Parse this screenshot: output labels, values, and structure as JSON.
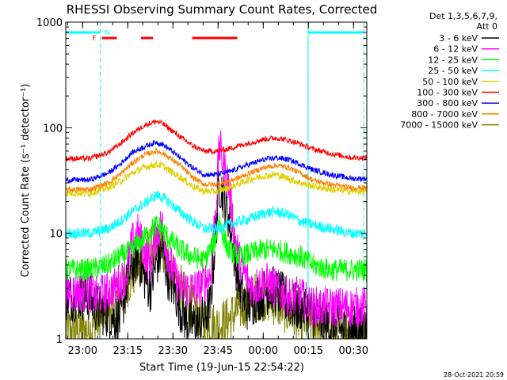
{
  "chart_data": {
    "type": "line",
    "title": "RHESSI Observing Summary Count Rates, Corrected",
    "xlabel": "Start Time (19-Jun-15 22:54:22)",
    "ylabel": "Corrected Count Rate (s⁻¹ detector⁻¹)",
    "y_scale": "log",
    "ylim": [
      1,
      1000
    ],
    "xlim_minutes": [
      0,
      100
    ],
    "x_ticks": [
      {
        "label": "23:00",
        "minute": 5.6
      },
      {
        "label": "23:15",
        "minute": 20.6
      },
      {
        "label": "23:30",
        "minute": 35.6
      },
      {
        "label": "23:45",
        "minute": 50.6
      },
      {
        "label": "00:00",
        "minute": 65.6
      },
      {
        "label": "00:15",
        "minute": 80.6
      },
      {
        "label": "00:30",
        "minute": 95.6
      }
    ],
    "y_ticks": [
      {
        "label": "1",
        "value": 1
      },
      {
        "label": "10",
        "value": 10
      },
      {
        "label": "100",
        "value": 100
      },
      {
        "label": "1000",
        "value": 1000
      }
    ],
    "legend_header": [
      "Det 1,3,5,6,7,9,",
      "Att 0"
    ],
    "legend_position": "top-right",
    "series": [
      {
        "name": "3 - 6 keV",
        "color": "#000000",
        "points": [
          [
            0,
            2.5
          ],
          [
            8,
            2.5
          ],
          [
            10,
            2
          ],
          [
            18,
            1.5
          ],
          [
            20,
            3
          ],
          [
            22,
            5
          ],
          [
            24,
            6
          ],
          [
            26,
            4
          ],
          [
            28,
            3
          ],
          [
            30,
            5
          ],
          [
            32,
            7
          ],
          [
            34,
            4
          ],
          [
            36,
            3
          ],
          [
            38,
            2
          ],
          [
            40,
            1.5
          ],
          [
            44,
            1.3
          ],
          [
            48,
            2
          ],
          [
            50,
            12
          ],
          [
            51,
            30
          ],
          [
            52,
            25
          ],
          [
            54,
            15
          ],
          [
            56,
            6
          ],
          [
            58,
            3
          ],
          [
            60,
            2
          ],
          [
            64,
            2.5
          ],
          [
            68,
            3
          ],
          [
            72,
            2.5
          ],
          [
            76,
            2
          ],
          [
            80,
            2
          ],
          [
            84,
            1.5
          ],
          [
            88,
            1.3
          ],
          [
            92,
            1.2
          ],
          [
            95,
            1.2
          ]
        ]
      },
      {
        "name": "6 - 12 keV",
        "color": "#ff00ff",
        "points": [
          [
            0,
            2.8
          ],
          [
            8,
            2.8
          ],
          [
            10,
            2.5
          ],
          [
            16,
            3
          ],
          [
            20,
            4
          ],
          [
            22,
            8
          ],
          [
            24,
            10
          ],
          [
            26,
            7
          ],
          [
            28,
            5
          ],
          [
            30,
            10
          ],
          [
            32,
            12
          ],
          [
            34,
            6
          ],
          [
            36,
            4
          ],
          [
            38,
            3
          ],
          [
            40,
            3
          ],
          [
            44,
            3
          ],
          [
            48,
            4
          ],
          [
            50,
            20
          ],
          [
            51,
            70
          ],
          [
            52,
            50
          ],
          [
            54,
            30
          ],
          [
            56,
            10
          ],
          [
            58,
            5
          ],
          [
            62,
            3
          ],
          [
            66,
            3.5
          ],
          [
            70,
            3
          ],
          [
            74,
            2.5
          ],
          [
            78,
            2.5
          ],
          [
            82,
            2
          ],
          [
            88,
            2
          ],
          [
            95,
            2
          ]
        ]
      },
      {
        "name": "12 - 25 keV",
        "color": "#00ff00",
        "points": [
          [
            0,
            4.5
          ],
          [
            8,
            4.5
          ],
          [
            14,
            5
          ],
          [
            18,
            6
          ],
          [
            22,
            7
          ],
          [
            26,
            9
          ],
          [
            30,
            12
          ],
          [
            32,
            11
          ],
          [
            34,
            9
          ],
          [
            38,
            7
          ],
          [
            42,
            6
          ],
          [
            46,
            5.5
          ],
          [
            50,
            9
          ],
          [
            51,
            14
          ],
          [
            52,
            10
          ],
          [
            54,
            7
          ],
          [
            58,
            6
          ],
          [
            62,
            6.5
          ],
          [
            66,
            7
          ],
          [
            70,
            7
          ],
          [
            74,
            6.5
          ],
          [
            78,
            6
          ],
          [
            82,
            5
          ],
          [
            88,
            4.5
          ],
          [
            95,
            4.5
          ]
        ]
      },
      {
        "name": "25 - 50 keV",
        "color": "#00ffff",
        "points": [
          [
            0,
            10
          ],
          [
            8,
            10
          ],
          [
            14,
            11
          ],
          [
            18,
            13
          ],
          [
            22,
            16
          ],
          [
            26,
            19
          ],
          [
            30,
            23
          ],
          [
            32,
            22
          ],
          [
            34,
            20
          ],
          [
            38,
            16
          ],
          [
            42,
            13
          ],
          [
            46,
            11
          ],
          [
            50,
            11
          ],
          [
            54,
            12
          ],
          [
            58,
            13
          ],
          [
            62,
            14
          ],
          [
            66,
            15.5
          ],
          [
            70,
            16
          ],
          [
            74,
            15
          ],
          [
            78,
            13
          ],
          [
            82,
            12
          ],
          [
            88,
            11
          ],
          [
            95,
            10
          ]
        ]
      },
      {
        "name": "50 - 100 keV",
        "color": "#e0d000",
        "points": [
          [
            0,
            24
          ],
          [
            8,
            24
          ],
          [
            14,
            27
          ],
          [
            18,
            31
          ],
          [
            22,
            37
          ],
          [
            26,
            42
          ],
          [
            30,
            45
          ],
          [
            32,
            44
          ],
          [
            34,
            40
          ],
          [
            38,
            34
          ],
          [
            42,
            28
          ],
          [
            46,
            25
          ],
          [
            50,
            25
          ],
          [
            54,
            27
          ],
          [
            58,
            30
          ],
          [
            62,
            33
          ],
          [
            66,
            35
          ],
          [
            70,
            36
          ],
          [
            74,
            33
          ],
          [
            78,
            30
          ],
          [
            82,
            28
          ],
          [
            88,
            26
          ],
          [
            95,
            25
          ]
        ]
      },
      {
        "name": "100 - 300 keV",
        "color": "#ff0000",
        "points": [
          [
            0,
            51
          ],
          [
            8,
            51
          ],
          [
            14,
            58
          ],
          [
            18,
            70
          ],
          [
            22,
            88
          ],
          [
            26,
            105
          ],
          [
            30,
            115
          ],
          [
            32,
            110
          ],
          [
            34,
            100
          ],
          [
            38,
            82
          ],
          [
            42,
            68
          ],
          [
            46,
            60
          ],
          [
            50,
            60
          ],
          [
            54,
            63
          ],
          [
            58,
            68
          ],
          [
            62,
            73
          ],
          [
            66,
            78
          ],
          [
            70,
            80
          ],
          [
            74,
            76
          ],
          [
            78,
            70
          ],
          [
            82,
            63
          ],
          [
            88,
            57
          ],
          [
            95,
            52
          ]
        ]
      },
      {
        "name": "300 - 800 keV",
        "color": "#0000ff",
        "points": [
          [
            0,
            32
          ],
          [
            8,
            32
          ],
          [
            14,
            37
          ],
          [
            18,
            45
          ],
          [
            22,
            58
          ],
          [
            26,
            66
          ],
          [
            30,
            73
          ],
          [
            32,
            70
          ],
          [
            34,
            64
          ],
          [
            38,
            52
          ],
          [
            42,
            42
          ],
          [
            46,
            36
          ],
          [
            50,
            36
          ],
          [
            54,
            38
          ],
          [
            58,
            42
          ],
          [
            62,
            46
          ],
          [
            66,
            50
          ],
          [
            70,
            52
          ],
          [
            74,
            50
          ],
          [
            78,
            45
          ],
          [
            82,
            40
          ],
          [
            88,
            36
          ],
          [
            95,
            33
          ]
        ]
      },
      {
        "name": "800 - 7000 keV",
        "color": "#ff8000",
        "points": [
          [
            0,
            26
          ],
          [
            8,
            26
          ],
          [
            14,
            30
          ],
          [
            18,
            36
          ],
          [
            22,
            46
          ],
          [
            26,
            55
          ],
          [
            30,
            60
          ],
          [
            32,
            58
          ],
          [
            34,
            53
          ],
          [
            38,
            44
          ],
          [
            42,
            34
          ],
          [
            46,
            29
          ],
          [
            50,
            29
          ],
          [
            54,
            31
          ],
          [
            58,
            34
          ],
          [
            62,
            38
          ],
          [
            66,
            42
          ],
          [
            70,
            44
          ],
          [
            74,
            42
          ],
          [
            78,
            37
          ],
          [
            82,
            32
          ],
          [
            88,
            29
          ],
          [
            95,
            27
          ]
        ]
      },
      {
        "name": "7000 - 15000 keV",
        "color": "#808000",
        "points": [
          [
            0,
            1.2
          ],
          [
            8,
            1.2
          ],
          [
            10,
            1.4
          ],
          [
            14,
            2
          ],
          [
            18,
            2.5
          ],
          [
            22,
            4
          ],
          [
            26,
            6
          ],
          [
            30,
            7.5
          ],
          [
            32,
            7
          ],
          [
            34,
            5
          ],
          [
            38,
            3
          ],
          [
            42,
            2
          ],
          [
            46,
            1.4
          ],
          [
            50,
            1.3
          ],
          [
            54,
            1.5
          ],
          [
            58,
            2
          ],
          [
            62,
            2.5
          ],
          [
            66,
            2.5
          ],
          [
            70,
            2.2
          ],
          [
            74,
            1.8
          ],
          [
            78,
            1.5
          ],
          [
            82,
            1.4
          ],
          [
            88,
            1.3
          ],
          [
            95,
            1.2
          ]
        ]
      }
    ],
    "annotations": {
      "flags": [
        {
          "label": "N",
          "color": "#00ffff",
          "row": "upper"
        },
        {
          "label": "F",
          "color": "#ff0000",
          "row": "lower"
        }
      ],
      "night_intervals_minutes": [
        [
          0,
          11.5
        ],
        [
          80.5,
          100
        ]
      ],
      "flare_flag_intervals_minutes": [
        [
          12,
          17
        ],
        [
          25,
          29
        ],
        [
          42,
          57
        ]
      ],
      "dashed_boundaries_minutes": [
        11.5,
        80.5,
        99
      ]
    },
    "timestamp": "28-Oct-2021 20:59"
  }
}
